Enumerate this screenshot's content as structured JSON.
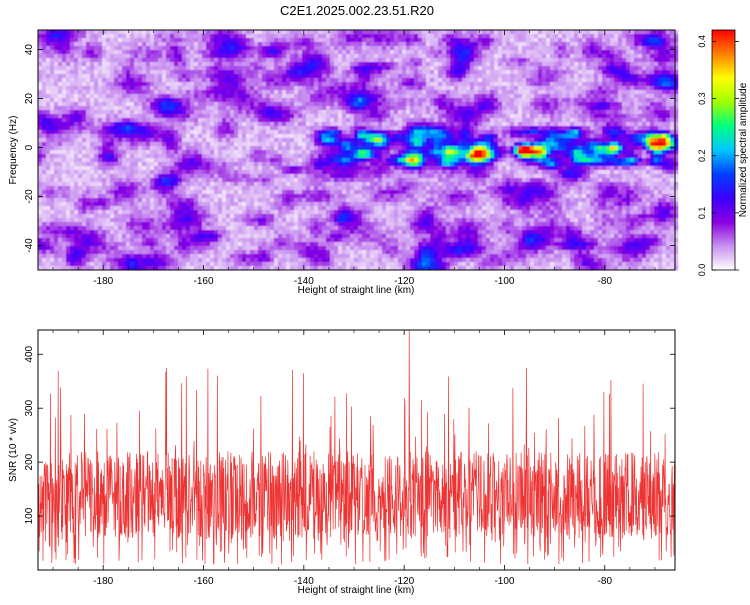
{
  "figure": {
    "title": "C2E1.2025.002.23.51.R20"
  },
  "chart_data": [
    {
      "type": "heatmap",
      "panel": "top",
      "xlabel": "Height of straight line (km)",
      "ylabel": "Frequency (Hz)",
      "xlim": [
        -193,
        -66
      ],
      "ylim": [
        -50,
        48
      ],
      "xticks": [
        -180,
        -160,
        -140,
        -120,
        -100,
        -80
      ],
      "yticks": [
        -40,
        -20,
        0,
        20,
        40
      ],
      "colorbar": {
        "label": "Normalized spectral amplitude",
        "range": [
          0.0,
          0.42
        ],
        "ticks": [
          0.0,
          0.1,
          0.2,
          0.3,
          0.4
        ],
        "tick_labels": [
          "0.0",
          "0.1",
          "0.2",
          "0.3",
          "0.4"
        ],
        "colormap": [
          "#ffffff",
          "#c890f0",
          "#8a00e0",
          "#3a00ff",
          "#0040ff",
          "#00c8ff",
          "#00ff80",
          "#a0ff00",
          "#ffff00",
          "#ff8000",
          "#ff0000"
        ]
      },
      "background_level": 0.035,
      "signal_line": {
        "frequency_hz": 0,
        "x_start_km": -137,
        "x_end_km": -66,
        "peak_amplitude": 0.42,
        "peaks": [
          {
            "x": -131,
            "y": 0,
            "v": 0.09
          },
          {
            "x": -114,
            "y": -2,
            "v": 0.13
          },
          {
            "x": -111,
            "y": -1,
            "v": 0.16
          },
          {
            "x": -105,
            "y": -1,
            "v": 0.12
          },
          {
            "x": -96,
            "y": -1,
            "v": 0.42
          },
          {
            "x": -93,
            "y": -2,
            "v": 0.2
          },
          {
            "x": -81,
            "y": 0,
            "v": 0.14
          },
          {
            "x": -78,
            "y": 0,
            "v": 0.22
          },
          {
            "x": -70,
            "y": 1,
            "v": 0.24
          },
          {
            "x": -68,
            "y": 1,
            "v": 0.2
          }
        ]
      }
    },
    {
      "type": "line",
      "panel": "bottom",
      "xlabel": "Height of straight line (km)",
      "ylabel": "SNR (10 * v/v)",
      "xlim": [
        -193,
        -66
      ],
      "ylim": [
        0,
        445
      ],
      "xticks": [
        -180,
        -160,
        -140,
        -120,
        -100,
        -80
      ],
      "yticks": [
        100,
        200,
        300,
        400
      ],
      "series": [
        {
          "color": "#ee3333",
          "typical_low": 60,
          "typical_high": 220,
          "spike_max": 445,
          "x_of_max": -119
        }
      ]
    }
  ]
}
